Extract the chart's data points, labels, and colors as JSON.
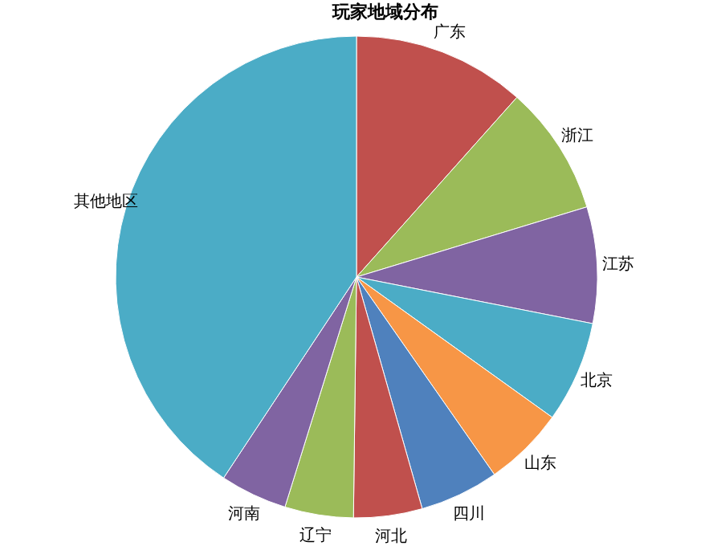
{
  "chart_data": {
    "type": "pie",
    "title": "玩家地域分布",
    "categories": [
      "广东",
      "浙江",
      "江苏",
      "北京",
      "山东",
      "四川",
      "河北",
      "辽宁",
      "河南",
      "其他地区"
    ],
    "values": [
      11.6,
      8.7,
      7.8,
      6.8,
      5.4,
      5.3,
      4.6,
      4.6,
      4.5,
      40.7
    ],
    "colors": [
      "#c0504d",
      "#9bbb59",
      "#8064a2",
      "#4bacc6",
      "#f79646",
      "#4f81bd",
      "#c0504d",
      "#9bbb59",
      "#8064a2",
      "#4bacc6"
    ]
  }
}
